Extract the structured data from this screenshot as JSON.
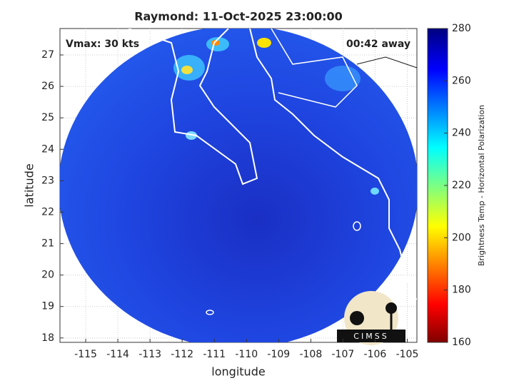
{
  "chart_data": {
    "type": "map",
    "title": "Raymond: 11-Oct-2025 23:00:00",
    "annotations": [
      "Vmax: 30 kts",
      "00:42 away"
    ],
    "xlabel": "longitude",
    "ylabel": "latitude",
    "xlim": [
      -115.8,
      -104.7
    ],
    "xticks": [
      -115,
      -114,
      -113,
      -112,
      -111,
      -110,
      -109,
      -108,
      -107,
      -106,
      -105
    ],
    "ylim": [
      17.86,
      27.84
    ],
    "yticks": [
      18,
      19,
      20,
      21,
      22,
      23,
      24,
      25,
      26,
      27
    ],
    "grid": true,
    "colorbar": {
      "label": "Brightness Temp - Horizontal Polarization",
      "lim": [
        160,
        280
      ],
      "ticks": [
        160,
        180,
        200,
        220,
        240,
        260,
        280
      ]
    },
    "logo": "CIMSS"
  }
}
